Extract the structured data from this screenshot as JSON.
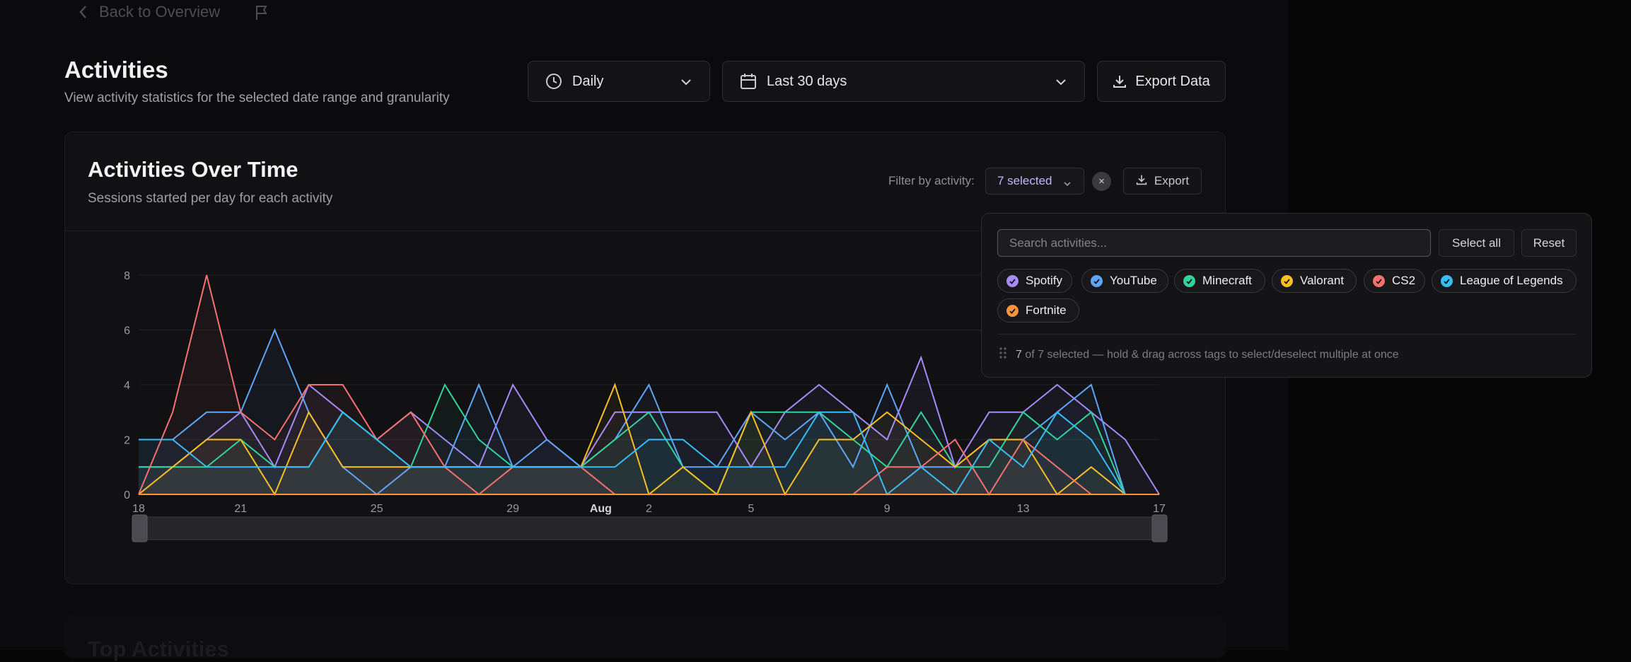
{
  "nav": {
    "back_label": "Back to Overview"
  },
  "header": {
    "title": "Activities",
    "subtitle": "View activity statistics for the selected date range and granularity",
    "granularity": "Daily",
    "date_range": "Last 30 days",
    "export_label": "Export Data"
  },
  "card": {
    "title": "Activities Over Time",
    "subtitle": "Sessions started per day for each activity",
    "filter_label": "Filter by activity:",
    "selected_label": "7 selected",
    "clear_label": "×",
    "export_label": "Export"
  },
  "filter_popover": {
    "search_placeholder": "Search activities...",
    "select_all_label": "Select all",
    "reset_label": "Reset",
    "tags": [
      {
        "label": "Spotify",
        "color": "#a78bfa"
      },
      {
        "label": "YouTube",
        "color": "#60a5fa"
      },
      {
        "label": "Minecraft",
        "color": "#34d399"
      },
      {
        "label": "Valorant",
        "color": "#fbbf24"
      },
      {
        "label": "CS2",
        "color": "#f87171"
      },
      {
        "label": "League of Legends",
        "color": "#38bdf8"
      },
      {
        "label": "Fortnite",
        "color": "#fb923c"
      }
    ],
    "footer_count": "7",
    "footer_text": "of 7 selected — hold & drag across tags to select/deselect multiple at once"
  },
  "ghost_title": "Top Activities",
  "chart_data": {
    "type": "area",
    "x": [
      "Jul 18",
      "Jul 19",
      "Jul 20",
      "Jul 21",
      "Jul 22",
      "Jul 23",
      "Jul 24",
      "Jul 25",
      "Jul 26",
      "Jul 27",
      "Jul 28",
      "Jul 29",
      "Jul 30",
      "Jul 31",
      "Aug 1",
      "Aug 2",
      "Aug 3",
      "Aug 4",
      "Aug 5",
      "Aug 6",
      "Aug 7",
      "Aug 8",
      "Aug 9",
      "Aug 10",
      "Aug 11",
      "Aug 12",
      "Aug 13",
      "Aug 14",
      "Aug 15",
      "Aug 16",
      "Aug 17"
    ],
    "x_tick_labels": [
      "18",
      "21",
      "25",
      "29",
      "Aug",
      "2",
      "5",
      "9",
      "13",
      "17"
    ],
    "x_tick_index": [
      0,
      3,
      7,
      11,
      14,
      15,
      18,
      22,
      26,
      30
    ],
    "y_ticks": [
      0,
      2,
      4,
      6,
      8
    ],
    "ylim": [
      0,
      8.5
    ],
    "grid": true,
    "brush": true,
    "series": [
      {
        "name": "Spotify",
        "color": "#a78bfa",
        "values": [
          1,
          1,
          2,
          3,
          1,
          4,
          3,
          2,
          3,
          2,
          1,
          4,
          2,
          1,
          3,
          3,
          3,
          3,
          1,
          3,
          4,
          3,
          2,
          5,
          1,
          3,
          3,
          4,
          3,
          2,
          0
        ]
      },
      {
        "name": "YouTube",
        "color": "#60a5fa",
        "values": [
          2,
          2,
          3,
          3,
          6,
          3,
          1,
          0,
          1,
          1,
          4,
          1,
          2,
          1,
          2,
          4,
          1,
          1,
          3,
          2,
          3,
          1,
          4,
          1,
          1,
          2,
          2,
          3,
          4,
          0,
          0
        ]
      },
      {
        "name": "Minecraft",
        "color": "#34d399",
        "values": [
          1,
          1,
          1,
          2,
          1,
          1,
          3,
          2,
          1,
          4,
          2,
          1,
          1,
          1,
          2,
          3,
          1,
          0,
          3,
          3,
          3,
          2,
          1,
          3,
          1,
          1,
          3,
          2,
          3,
          0,
          0
        ]
      },
      {
        "name": "Valorant",
        "color": "#fbbf24",
        "values": [
          0,
          1,
          2,
          2,
          0,
          3,
          1,
          1,
          1,
          1,
          1,
          1,
          1,
          1,
          4,
          0,
          1,
          0,
          3,
          0,
          2,
          2,
          3,
          2,
          1,
          2,
          2,
          0,
          1,
          0,
          0
        ]
      },
      {
        "name": "CS2",
        "color": "#f87171",
        "values": [
          0,
          3,
          8,
          3,
          2,
          4,
          4,
          2,
          3,
          1,
          0,
          1,
          1,
          1,
          0,
          0,
          0,
          0,
          0,
          0,
          0,
          0,
          1,
          1,
          2,
          0,
          2,
          1,
          0,
          0,
          0
        ]
      },
      {
        "name": "League of Legends",
        "color": "#38bdf8",
        "values": [
          2,
          2,
          1,
          1,
          1,
          1,
          3,
          2,
          1,
          1,
          1,
          1,
          1,
          1,
          1,
          2,
          2,
          1,
          1,
          1,
          3,
          3,
          0,
          1,
          0,
          2,
          1,
          3,
          2,
          0,
          0
        ]
      },
      {
        "name": "Fortnite",
        "color": "#fb923c",
        "values": [
          0,
          0,
          0,
          0,
          0,
          0,
          0,
          0,
          0,
          0,
          0,
          0,
          0,
          0,
          0,
          0,
          0,
          0,
          0,
          0,
          0,
          0,
          0,
          0,
          0,
          0,
          0,
          0,
          0,
          0,
          0
        ]
      }
    ]
  }
}
